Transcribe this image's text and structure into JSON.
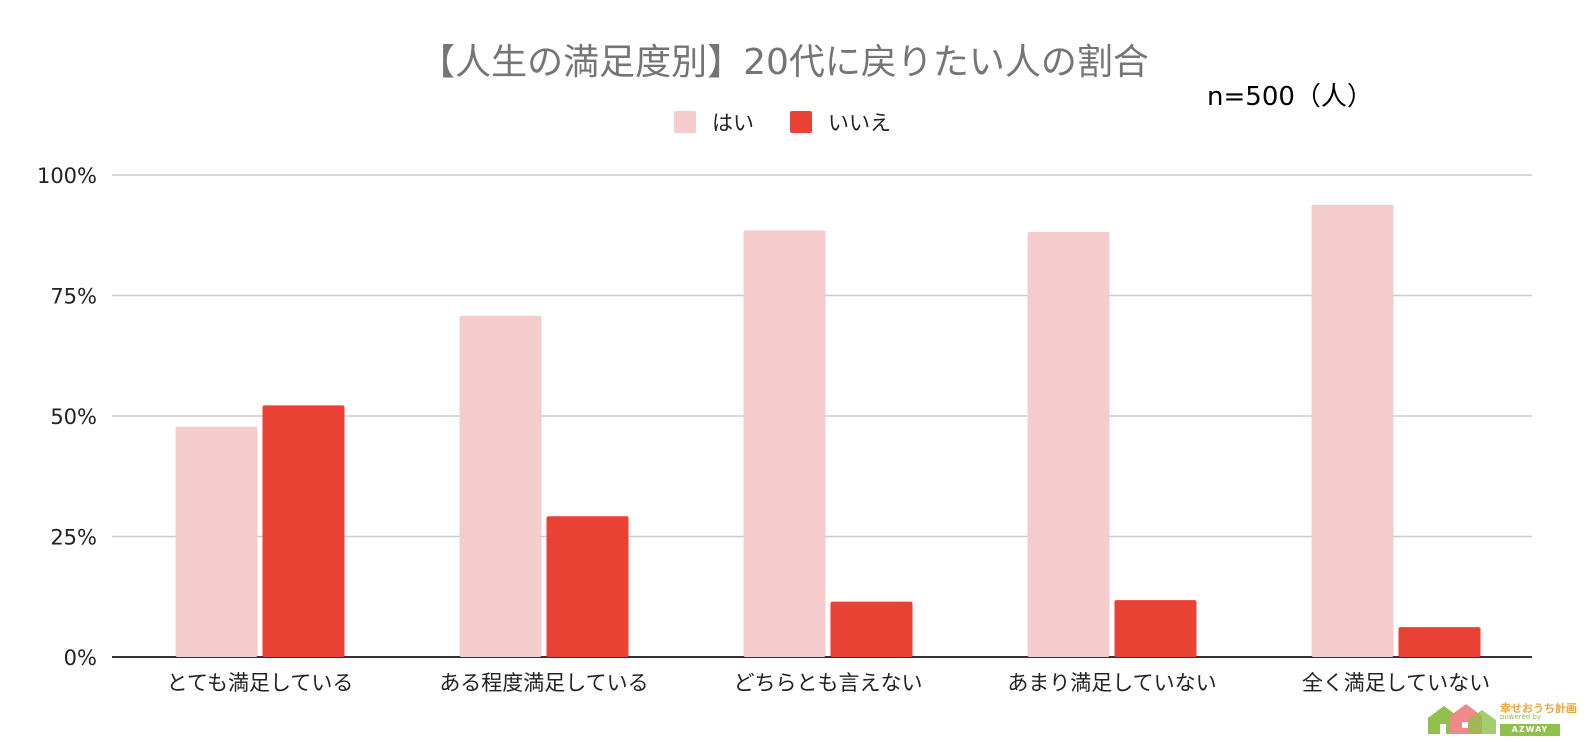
{
  "chart_data": {
    "type": "bar",
    "title": "【人生の満足度別】20代に戻りたい人の割合",
    "annotation": "n=500（人）",
    "categories": [
      "とても満足している",
      "ある程度満足している",
      "どちらとも言えない",
      "あまり満足していない",
      "全く満足していない"
    ],
    "series": [
      {
        "name": "はい",
        "color": "#f4cccc",
        "values": [
          47.8,
          70.8,
          88.5,
          88.2,
          93.8
        ]
      },
      {
        "name": "いいえ",
        "color": "#e94235",
        "values": [
          52.2,
          29.2,
          11.5,
          11.8,
          6.2
        ]
      }
    ],
    "yticks": [
      "0%",
      "25%",
      "50%",
      "75%",
      "100%"
    ],
    "ylim": [
      0,
      100
    ],
    "xlabel": "",
    "ylabel": "",
    "grid": true,
    "legend_position": "top-center"
  },
  "logo": {
    "text": "幸せおうち計画",
    "subtext": "powered by",
    "brand": "AZWAY"
  }
}
